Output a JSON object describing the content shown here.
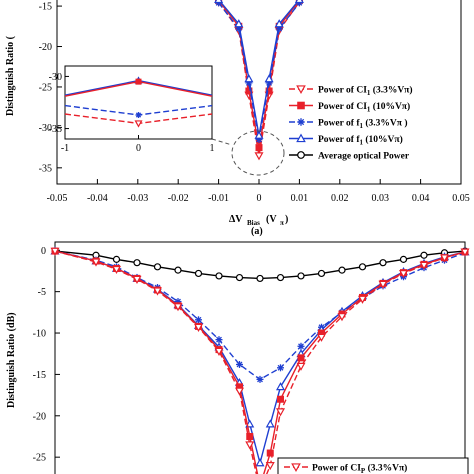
{
  "chart_data": [
    {
      "type": "line",
      "panel": "top",
      "xlabel_main": "ΔV",
      "xlabel_sub": "Bias",
      "xlabel_unit": "(V",
      "xlabel_unit_sub": "π",
      "xlabel_close": ")",
      "ylabel": "Distinguish Ratio (",
      "caption": "(a)",
      "xlim": [
        -0.05,
        0.05
      ],
      "ylim": [
        -37,
        -14
      ],
      "x_ticks": [
        "-0.05",
        "-0.04",
        "-0.03",
        "-0.02",
        "-0.01",
        "0",
        "0.01",
        "0.02",
        "0.03",
        "0.04",
        "0.05"
      ],
      "y_ticks": [
        "-15",
        "-20",
        "-25",
        "-30",
        "-35"
      ],
      "series": [
        {
          "name": "Power of CI",
          "name_sub": "1",
          "name_tail": " (3.3%Vπ)",
          "color": "#e8202a",
          "dash": "6,3",
          "marker": "tri-down",
          "x": [
            -0.01,
            -0.005,
            -0.0025,
            0,
            0.0025,
            0.005,
            0.01
          ],
          "y": [
            -14.5,
            -18,
            -26,
            -33.5,
            -26,
            -18,
            -14.5
          ]
        },
        {
          "name": "Power of CI",
          "name_sub": "1",
          "name_tail": " (10%Vπ)",
          "color": "#e8202a",
          "dash": "",
          "marker": "square",
          "x": [
            -0.01,
            -0.005,
            -0.0025,
            0,
            0.0025,
            0.005,
            0.01
          ],
          "y": [
            -14.3,
            -17.5,
            -25.5,
            -32.5,
            -25.5,
            -17.5,
            -14.3
          ]
        },
        {
          "name": "Power of f",
          "name_sub": "1",
          "name_tail": " (3.3%Vπ )",
          "color": "#1f3fd1",
          "dash": "6,3",
          "marker": "star",
          "x": [
            -0.01,
            -0.005,
            -0.0025,
            0,
            0.0025,
            0.005,
            0.01
          ],
          "y": [
            -14.6,
            -17.8,
            -24.5,
            -31.5,
            -24.5,
            -17.8,
            -14.6
          ]
        },
        {
          "name": "Power of f",
          "name_sub": "1",
          "name_tail": " (10%Vπ)",
          "color": "#1f3fd1",
          "dash": "",
          "marker": "tri-up",
          "x": [
            -0.01,
            -0.005,
            -0.0025,
            0,
            0.0025,
            0.005,
            0.01
          ],
          "y": [
            -14.2,
            -17.2,
            -24,
            -31,
            -24,
            -17.2,
            -14.2
          ]
        },
        {
          "name": "Average optical Power",
          "name_sub": "",
          "name_tail": "",
          "color": "#000000",
          "dash": "",
          "marker": "circle",
          "x": [],
          "y": []
        }
      ],
      "inset": {
        "xlim": [
          -1,
          1
        ],
        "ylim": [
          -36,
          -29
        ],
        "x_ticks": [
          "-1",
          "0",
          "1"
        ],
        "y_ticks": [
          "-30",
          "-35"
        ],
        "series": [
          {
            "color": "#1f3fd1",
            "dash": "",
            "marker": "tri-up",
            "x": [
              -1,
              0,
              1
            ],
            "y": [
              -31.8,
              -30.4,
              -31.8
            ]
          },
          {
            "color": "#e8202a",
            "dash": "",
            "marker": "square",
            "x": [
              -1,
              0,
              1
            ],
            "y": [
              -31.9,
              -30.5,
              -31.9
            ]
          },
          {
            "color": "#1f3fd1",
            "dash": "6,3",
            "marker": "star",
            "x": [
              -1,
              0,
              1
            ],
            "y": [
              -32.8,
              -33.7,
              -32.8
            ]
          },
          {
            "color": "#e8202a",
            "dash": "6,3",
            "marker": "tri-down",
            "x": [
              -1,
              0,
              1
            ],
            "y": [
              -33.6,
              -34.5,
              -33.6
            ]
          }
        ]
      }
    },
    {
      "type": "line",
      "panel": "bottom",
      "ylabel": "Distinguish Ratio (dB)",
      "xlim": [
        -0.05,
        0.05
      ],
      "ylim": [
        -28,
        1
      ],
      "y_ticks": [
        "0",
        "-5",
        "-10",
        "-15",
        "-20",
        "-25"
      ],
      "legend_visible": {
        "name": "Power of CI",
        "name_sub": "P",
        "name_tail": " (3.3%Vπ)"
      },
      "series": [
        {
          "name": "Average optical Power",
          "color": "#000000",
          "dash": "",
          "marker": "circle",
          "x": [
            -0.05,
            -0.04,
            -0.035,
            -0.03,
            -0.025,
            -0.02,
            -0.015,
            -0.01,
            -0.005,
            0,
            0.005,
            0.01,
            0.015,
            0.02,
            0.025,
            0.03,
            0.035,
            0.04,
            0.045,
            0.05
          ],
          "y": [
            -0.1,
            -0.6,
            -1.1,
            -1.5,
            -2,
            -2.4,
            -2.8,
            -3.1,
            -3.3,
            -3.4,
            -3.3,
            -3.1,
            -2.8,
            -2.4,
            -2,
            -1.5,
            -1.1,
            -0.6,
            -0.3,
            -0.1
          ]
        },
        {
          "name": "Power of f1 (3.3%Vπ)",
          "color": "#1f3fd1",
          "dash": "6,3",
          "marker": "star",
          "x": [
            -0.05,
            -0.04,
            -0.035,
            -0.03,
            -0.025,
            -0.02,
            -0.015,
            -0.01,
            -0.005,
            0,
            0.005,
            0.01,
            0.015,
            0.02,
            0.025,
            0.03,
            0.035,
            0.04,
            0.045,
            0.05
          ],
          "y": [
            -0.1,
            -1.2,
            -2,
            -3.3,
            -4.5,
            -6.2,
            -8.4,
            -10.8,
            -13.8,
            -15.6,
            -14.2,
            -11.6,
            -9.3,
            -7.5,
            -5.8,
            -4.3,
            -3.2,
            -2.1,
            -1.2,
            -0.3
          ]
        },
        {
          "name": "Power of f1 (10%Vπ)",
          "color": "#1f3fd1",
          "dash": "",
          "marker": "tri-up",
          "x": [
            -0.05,
            -0.04,
            -0.035,
            -0.03,
            -0.025,
            -0.02,
            -0.015,
            -0.01,
            -0.005,
            -0.0025,
            0,
            0.0025,
            0.005,
            0.01,
            0.015,
            0.02,
            0.025,
            0.03,
            0.035,
            0.04,
            0.045,
            0.05
          ],
          "y": [
            -0.1,
            -1.3,
            -2.2,
            -3.4,
            -4.7,
            -6.6,
            -9.1,
            -11.7,
            -16,
            -21,
            -25.7,
            -21,
            -16.5,
            -12.5,
            -9.6,
            -7.4,
            -5.5,
            -3.9,
            -2.6,
            -1.6,
            -0.8,
            -0.2
          ]
        },
        {
          "name": "Power of CI1 (10%Vπ)",
          "color": "#e8202a",
          "dash": "",
          "marker": "square",
          "x": [
            -0.05,
            -0.04,
            -0.035,
            -0.03,
            -0.025,
            -0.02,
            -0.015,
            -0.01,
            -0.005,
            -0.0025,
            0,
            0.0025,
            0.005,
            0.01,
            0.015,
            0.02,
            0.025,
            0.03,
            0.035,
            0.04,
            0.045,
            0.05
          ],
          "y": [
            -0.1,
            -1.3,
            -2.2,
            -3.4,
            -4.8,
            -6.7,
            -9.2,
            -12,
            -16.5,
            -22.5,
            -28.5,
            -24.5,
            -18,
            -13,
            -10,
            -7.7,
            -5.7,
            -4,
            -2.7,
            -1.7,
            -0.9,
            -0.2
          ]
        },
        {
          "name": "Power of CI1 (3.3%Vπ)",
          "color": "#e8202a",
          "dash": "6,3",
          "marker": "tri-down",
          "x": [
            -0.05,
            -0.04,
            -0.035,
            -0.03,
            -0.025,
            -0.02,
            -0.015,
            -0.01,
            -0.005,
            -0.0025,
            0,
            0.0025,
            0.005,
            0.01,
            0.015,
            0.02,
            0.025,
            0.03,
            0.035,
            0.04,
            0.045,
            0.05
          ],
          "y": [
            -0.1,
            -1.4,
            -2.3,
            -3.5,
            -4.9,
            -6.8,
            -9.3,
            -12.2,
            -17,
            -23.5,
            -29,
            -26,
            -19.5,
            -14,
            -10.5,
            -8,
            -5.9,
            -4.1,
            -2.8,
            -1.8,
            -0.9,
            -0.2
          ]
        }
      ]
    }
  ]
}
